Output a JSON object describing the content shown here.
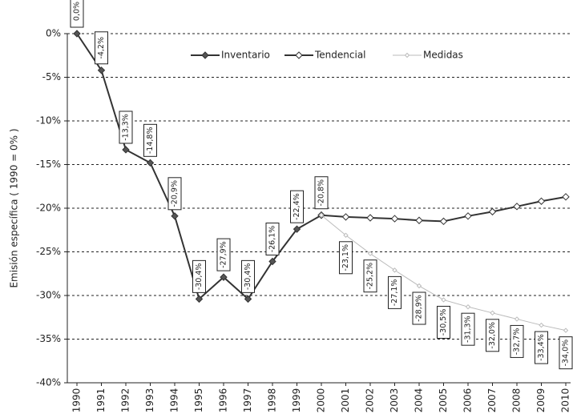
{
  "chart_data": {
    "type": "line",
    "y_label": "Emisión específica ( 1990 = 0% )",
    "categories": [
      "1990",
      "1991",
      "1992",
      "1993",
      "1994",
      "1995",
      "1996",
      "1997",
      "1998",
      "1999",
      "2000",
      "2001",
      "2002",
      "2003",
      "2004",
      "2005",
      "2006",
      "2007",
      "2008",
      "2009",
      "2010"
    ],
    "series": [
      {
        "name": "Inventario",
        "color": "#333333",
        "values": [
          0,
          -4.2,
          -13.3,
          -14.8,
          -20.9,
          -30.4,
          -27.9,
          -30.4,
          -26.1,
          -22.4,
          -20.8,
          null,
          null,
          null,
          null,
          null,
          null,
          null,
          null,
          null,
          null
        ],
        "value_labels": [
          "0,0%",
          "-4,2%",
          "-13,3%",
          "-14,8%",
          "-20,9%",
          "-30,4%",
          "-27,9%",
          "-30,4%",
          "-26,1%",
          "-22,4%",
          "-20,8%",
          null,
          null,
          null,
          null,
          null,
          null,
          null,
          null,
          null,
          null
        ]
      },
      {
        "name": "Tendencial",
        "color": "#333333",
        "values": [
          null,
          null,
          null,
          null,
          null,
          null,
          null,
          null,
          null,
          null,
          -20.8,
          -21.0,
          -21.1,
          -21.2,
          -21.4,
          -21.5,
          -20.9,
          -20.4,
          -19.8,
          -19.2,
          -18.7
        ]
      },
      {
        "name": "Medidas",
        "color": "#bbbbbb",
        "values": [
          null,
          null,
          null,
          null,
          null,
          null,
          null,
          null,
          null,
          null,
          -20.8,
          -23.1,
          -25.2,
          -27.1,
          -28.9,
          -30.5,
          -31.3,
          -32.0,
          -32.7,
          -33.4,
          -34.0
        ],
        "value_labels": [
          null,
          null,
          null,
          null,
          null,
          null,
          null,
          null,
          null,
          null,
          null,
          "-23,1%",
          "-25,2%",
          "-27,1%",
          "-28,9%",
          "-30,5%",
          "-31,3%",
          "-32,0%",
          "-32,7%",
          "-33,4%",
          "-34,0%"
        ]
      }
    ],
    "ylim": [
      -40,
      0
    ],
    "yticks": [
      {
        "value": 0,
        "label": "0%"
      },
      {
        "value": -5,
        "label": "-5%"
      },
      {
        "value": -10,
        "label": "-10%"
      },
      {
        "value": -15,
        "label": "-15%"
      },
      {
        "value": -20,
        "label": "-20%"
      },
      {
        "value": -25,
        "label": "-25%"
      },
      {
        "value": -30,
        "label": "-30%"
      },
      {
        "value": -35,
        "label": "-35%"
      },
      {
        "value": -40,
        "label": "-40%"
      }
    ],
    "grid": true,
    "legend": "top"
  }
}
